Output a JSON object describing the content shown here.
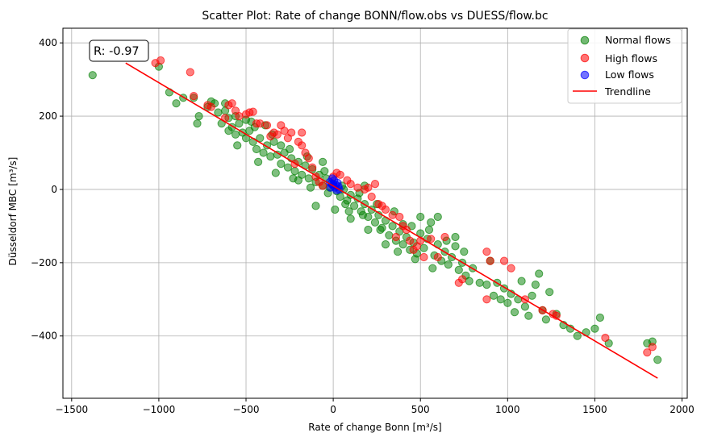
{
  "chart_data": {
    "type": "scatter",
    "title": "Scatter Plot: Rate of change BONN/flow.obs vs DUESS/flow.bc",
    "xlabel": "Rate of change Bonn [m³/s]",
    "ylabel": "Düsseldorf MBC [m³/s]",
    "xlim": [
      -1550,
      2030
    ],
    "ylim": [
      -570,
      440
    ],
    "xticks": [
      -1500,
      -1000,
      -500,
      0,
      500,
      1000,
      1500,
      2000
    ],
    "yticks": [
      -400,
      -200,
      0,
      200,
      400
    ],
    "grid": true,
    "legend_position": "top-right",
    "annotation": "R: -0.97",
    "series": [
      {
        "name": "Normal flows",
        "color": "#008000",
        "points": [
          [
            -1380,
            312
          ],
          [
            -1000,
            335
          ],
          [
            -940,
            265
          ],
          [
            -900,
            235
          ],
          [
            -860,
            250
          ],
          [
            -800,
            250
          ],
          [
            -780,
            180
          ],
          [
            -770,
            200
          ],
          [
            -720,
            225
          ],
          [
            -680,
            235
          ],
          [
            -660,
            210
          ],
          [
            -640,
            180
          ],
          [
            -620,
            235
          ],
          [
            -600,
            195
          ],
          [
            -580,
            170
          ],
          [
            -560,
            150
          ],
          [
            -540,
            180
          ],
          [
            -520,
            155
          ],
          [
            -500,
            190
          ],
          [
            -480,
            160
          ],
          [
            -460,
            130
          ],
          [
            -440,
            110
          ],
          [
            -420,
            140
          ],
          [
            -400,
            100
          ],
          [
            -380,
            120
          ],
          [
            -360,
            90
          ],
          [
            -340,
            130
          ],
          [
            -320,
            95
          ],
          [
            -300,
            70
          ],
          [
            -280,
            100
          ],
          [
            -260,
            60
          ],
          [
            -240,
            85
          ],
          [
            -220,
            50
          ],
          [
            -200,
            75
          ],
          [
            -180,
            40
          ],
          [
            -160,
            65
          ],
          [
            -140,
            30
          ],
          [
            -120,
            55
          ],
          [
            -100,
            20
          ],
          [
            -80,
            40
          ],
          [
            -60,
            10
          ],
          [
            -40,
            30
          ],
          [
            -20,
            5
          ],
          [
            0,
            15
          ],
          [
            20,
            -5
          ],
          [
            40,
            -20
          ],
          [
            60,
            0
          ],
          [
            80,
            -30
          ],
          [
            100,
            -15
          ],
          [
            120,
            -45
          ],
          [
            140,
            -25
          ],
          [
            160,
            -60
          ],
          [
            180,
            -40
          ],
          [
            200,
            -75
          ],
          [
            220,
            -55
          ],
          [
            240,
            -90
          ],
          [
            260,
            -70
          ],
          [
            280,
            -105
          ],
          [
            300,
            -85
          ],
          [
            320,
            -125
          ],
          [
            340,
            -100
          ],
          [
            360,
            -140
          ],
          [
            380,
            -115
          ],
          [
            400,
            -150
          ],
          [
            420,
            -130
          ],
          [
            440,
            -165
          ],
          [
            460,
            -145
          ],
          [
            480,
            -175
          ],
          [
            500,
            -120
          ],
          [
            520,
            -160
          ],
          [
            540,
            -135
          ],
          [
            560,
            -90
          ],
          [
            580,
            -180
          ],
          [
            600,
            -150
          ],
          [
            620,
            -195
          ],
          [
            640,
            -170
          ],
          [
            660,
            -205
          ],
          [
            680,
            -185
          ],
          [
            700,
            -155
          ],
          [
            720,
            -220
          ],
          [
            740,
            -200
          ],
          [
            760,
            -235
          ],
          [
            780,
            -250
          ],
          [
            800,
            -215
          ],
          [
            840,
            -255
          ],
          [
            880,
            -260
          ],
          [
            900,
            -195
          ],
          [
            920,
            -290
          ],
          [
            940,
            -255
          ],
          [
            960,
            -300
          ],
          [
            980,
            -270
          ],
          [
            1000,
            -310
          ],
          [
            1020,
            -285
          ],
          [
            1040,
            -335
          ],
          [
            1060,
            -300
          ],
          [
            1080,
            -250
          ],
          [
            1100,
            -320
          ],
          [
            1120,
            -345
          ],
          [
            1140,
            -290
          ],
          [
            1160,
            -260
          ],
          [
            1180,
            -230
          ],
          [
            1200,
            -330
          ],
          [
            1220,
            -355
          ],
          [
            1240,
            -280
          ],
          [
            1280,
            -340
          ],
          [
            1320,
            -370
          ],
          [
            1360,
            -380
          ],
          [
            1400,
            -400
          ],
          [
            1450,
            -390
          ],
          [
            1500,
            -380
          ],
          [
            1530,
            -350
          ],
          [
            1580,
            -420
          ],
          [
            1800,
            -420
          ],
          [
            1830,
            -415
          ],
          [
            1860,
            -465
          ],
          [
            -700,
            240
          ],
          [
            -620,
            215
          ],
          [
            -560,
            200
          ],
          [
            -450,
            170
          ],
          [
            -350,
            150
          ],
          [
            -250,
            110
          ],
          [
            -150,
            90
          ],
          [
            -50,
            50
          ],
          [
            50,
            10
          ],
          [
            150,
            -10
          ],
          [
            250,
            -40
          ],
          [
            350,
            -60
          ],
          [
            450,
            -100
          ],
          [
            550,
            -110
          ],
          [
            650,
            -140
          ],
          [
            750,
            -170
          ],
          [
            -430,
            75
          ],
          [
            -330,
            45
          ],
          [
            -230,
            30
          ],
          [
            -130,
            5
          ],
          [
            -30,
            -10
          ],
          [
            70,
            -40
          ],
          [
            170,
            -70
          ],
          [
            270,
            -110
          ],
          [
            370,
            -170
          ],
          [
            470,
            -190
          ],
          [
            570,
            -215
          ],
          [
            -100,
            -45
          ],
          [
            -200,
            25
          ],
          [
            300,
            -150
          ],
          [
            400,
            -95
          ],
          [
            200,
            -110
          ],
          [
            100,
            -80
          ],
          [
            -300,
            120
          ],
          [
            -500,
            140
          ],
          [
            -600,
            160
          ],
          [
            700,
            -130
          ],
          [
            600,
            -75
          ],
          [
            500,
            -75
          ],
          [
            -60,
            75
          ],
          [
            10,
            -55
          ],
          [
            90,
            -60
          ],
          [
            180,
            10
          ],
          [
            -390,
            175
          ],
          [
            -470,
            185
          ],
          [
            -550,
            120
          ]
        ]
      },
      {
        "name": "High flows",
        "color": "#ff0000",
        "points": [
          [
            -990,
            352
          ],
          [
            -1020,
            345
          ],
          [
            -820,
            320
          ],
          [
            -800,
            255
          ],
          [
            -720,
            230
          ],
          [
            -600,
            230
          ],
          [
            -580,
            235
          ],
          [
            -560,
            215
          ],
          [
            -540,
            200
          ],
          [
            -480,
            210
          ],
          [
            -460,
            212
          ],
          [
            -420,
            180
          ],
          [
            -380,
            175
          ],
          [
            -360,
            145
          ],
          [
            -320,
            150
          ],
          [
            -280,
            160
          ],
          [
            -260,
            140
          ],
          [
            -240,
            155
          ],
          [
            -200,
            130
          ],
          [
            -180,
            120
          ],
          [
            -160,
            100
          ],
          [
            -140,
            85
          ],
          [
            -120,
            60
          ],
          [
            -100,
            35
          ],
          [
            -80,
            20
          ],
          [
            -60,
            10
          ],
          [
            20,
            45
          ],
          [
            40,
            40
          ],
          [
            80,
            25
          ],
          [
            100,
            15
          ],
          [
            140,
            5
          ],
          [
            180,
            0
          ],
          [
            220,
            -20
          ],
          [
            260,
            -40
          ],
          [
            280,
            -45
          ],
          [
            300,
            -55
          ],
          [
            340,
            -70
          ],
          [
            380,
            -75
          ],
          [
            400,
            -100
          ],
          [
            420,
            -110
          ],
          [
            440,
            -140
          ],
          [
            460,
            -165
          ],
          [
            480,
            -155
          ],
          [
            500,
            -140
          ],
          [
            520,
            -185
          ],
          [
            560,
            -135
          ],
          [
            640,
            -130
          ],
          [
            720,
            -255
          ],
          [
            740,
            -245
          ],
          [
            880,
            -170
          ],
          [
            900,
            -195
          ],
          [
            980,
            -195
          ],
          [
            1020,
            -215
          ],
          [
            1100,
            -300
          ],
          [
            1200,
            -330
          ],
          [
            1260,
            -340
          ],
          [
            1280,
            -345
          ],
          [
            1560,
            -405
          ],
          [
            1800,
            -445
          ],
          [
            1830,
            -430
          ],
          [
            -700,
            225
          ],
          [
            -500,
            205
          ],
          [
            -300,
            175
          ],
          [
            -220,
            70
          ],
          [
            200,
            5
          ],
          [
            240,
            15
          ],
          [
            0,
            35
          ],
          [
            -620,
            195
          ],
          [
            -340,
            155
          ],
          [
            360,
            -130
          ],
          [
            600,
            -185
          ],
          [
            -180,
            155
          ],
          [
            -440,
            180
          ],
          [
            880,
            -300
          ]
        ]
      },
      {
        "name": "Low flows",
        "color": "#0000ff",
        "points": [
          [
            -20,
            20
          ],
          [
            -10,
            15
          ],
          [
            0,
            10
          ],
          [
            5,
            25
          ],
          [
            10,
            5
          ],
          [
            15,
            12
          ],
          [
            20,
            -2
          ],
          [
            25,
            18
          ],
          [
            30,
            8
          ],
          [
            -5,
            30
          ],
          [
            -15,
            5
          ],
          [
            35,
            0
          ]
        ]
      }
    ],
    "trendline": {
      "name": "Trendline",
      "color": "#ff0000",
      "x": [
        -1190,
        1860
      ],
      "y": [
        345,
        -515
      ]
    }
  }
}
